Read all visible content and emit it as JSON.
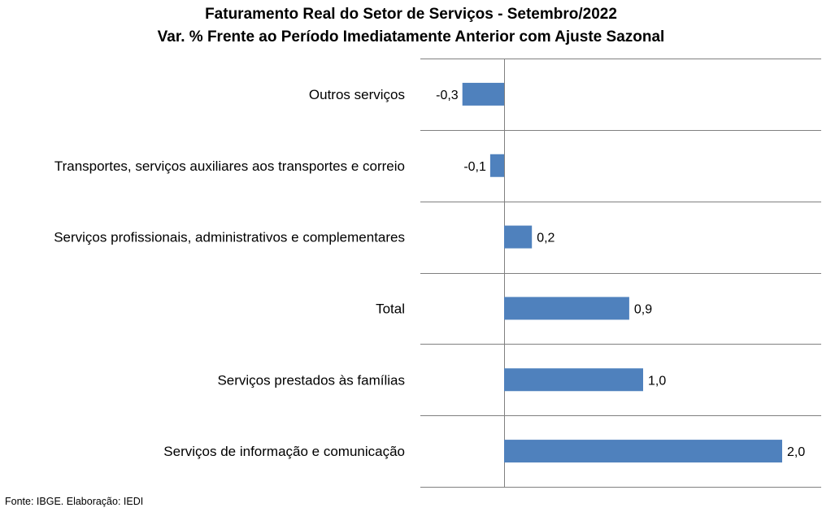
{
  "chart_data": {
    "type": "bar",
    "orientation": "horizontal",
    "title": "Faturamento Real do Setor de Serviços - Setembro/2022",
    "subtitle": "Var. % Frente ao Período Imediatamente Anterior com Ajuste Sazonal",
    "categories": [
      "Outros serviços",
      "Transportes, serviços auxiliares aos transportes e correio",
      "Serviços profissionais, administrativos e complementares",
      "Total",
      "Serviços prestados às famílias",
      "Serviços de informação e comunicação"
    ],
    "values": [
      -0.3,
      -0.1,
      0.2,
      0.9,
      1.0,
      2.0
    ],
    "value_labels": [
      "-0,3",
      "-0,1",
      "0,2",
      "0,9",
      "1,0",
      "2,0"
    ],
    "xlim": [
      -0.6,
      2.2
    ],
    "bar_color": "#4f81bd",
    "grid": true
  },
  "source": "Fonte: IBGE. Elaboração: IEDI"
}
